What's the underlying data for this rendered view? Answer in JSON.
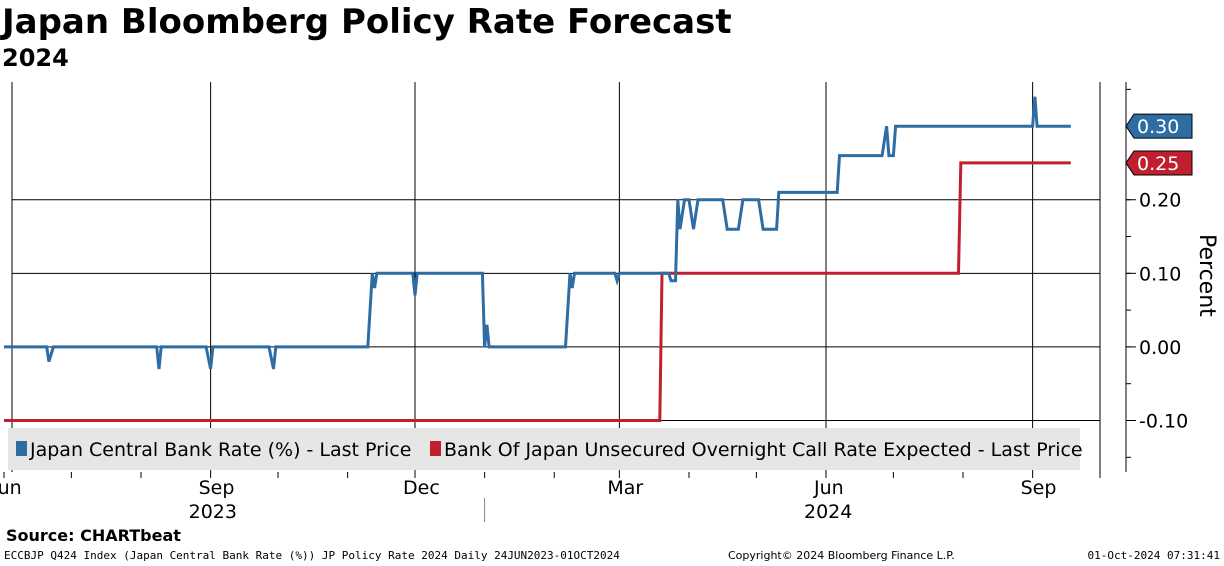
{
  "title": "Japan Bloomberg Policy Rate Forecast",
  "subtitle": "2024",
  "source": "Source: CHARTbeat",
  "footer": {
    "left": "ECCBJP Q424 Index (Japan Central Bank Rate (%)) JP Policy Rate 2024  Daily 24JUN2023-01OCT2024",
    "middle": "Copyright© 2024 Bloomberg Finance L.P.",
    "right": "01-Oct-2024 07:31:41"
  },
  "chart_data": {
    "type": "line",
    "x_range": [
      "2023-06-01",
      "2024-10-01"
    ],
    "ylabel": "Percent",
    "ylim": [
      -0.17,
      0.36
    ],
    "yticks": [
      -0.1,
      0.0,
      0.1,
      0.2
    ],
    "ytick_labels": [
      "-0.10",
      "0.00",
      "0.10",
      "0.20"
    ],
    "x_ticks": [
      {
        "date": "2023-06-01",
        "label": "Jun"
      },
      {
        "date": "2023-09-01",
        "label": "Sep"
      },
      {
        "date": "2023-12-01",
        "label": "Dec"
      },
      {
        "date": "2024-03-01",
        "label": "Mar"
      },
      {
        "date": "2024-06-01",
        "label": "Jun"
      },
      {
        "date": "2024-09-01",
        "label": "Sep"
      }
    ],
    "year_labels": [
      {
        "date": "2023-09-01",
        "label": "2023"
      },
      {
        "date": "2024-06-01",
        "label": "2024"
      }
    ],
    "year_divider": "2024-01-01",
    "grid": true,
    "legend_position": "bottom",
    "series": [
      {
        "name": "Japan Central Bank Rate (%) - Last Price",
        "color": "#2e6ca4",
        "last_value_label": "0.30",
        "points": [
          [
            "2023-06-01",
            0.0
          ],
          [
            "2023-06-20",
            0.0
          ],
          [
            "2023-06-21",
            -0.02
          ],
          [
            "2023-06-23",
            0.0
          ],
          [
            "2023-08-08",
            0.0
          ],
          [
            "2023-08-09",
            -0.03
          ],
          [
            "2023-08-10",
            0.0
          ],
          [
            "2023-08-30",
            0.0
          ],
          [
            "2023-09-01",
            -0.03
          ],
          [
            "2023-09-02",
            0.0
          ],
          [
            "2023-09-27",
            0.0
          ],
          [
            "2023-09-29",
            -0.03
          ],
          [
            "2023-09-30",
            0.0
          ],
          [
            "2023-11-10",
            0.0
          ],
          [
            "2023-11-12",
            0.1
          ],
          [
            "2023-11-13",
            0.08
          ],
          [
            "2023-11-14",
            0.1
          ],
          [
            "2023-11-30",
            0.1
          ],
          [
            "2023-12-01",
            0.07
          ],
          [
            "2023-12-02",
            0.1
          ],
          [
            "2023-12-31",
            0.1
          ],
          [
            "2024-01-01",
            0.0
          ],
          [
            "2024-01-02",
            0.03
          ],
          [
            "2024-01-03",
            0.0
          ],
          [
            "2024-02-06",
            0.0
          ],
          [
            "2024-02-08",
            0.1
          ],
          [
            "2024-02-09",
            0.08
          ],
          [
            "2024-02-10",
            0.1
          ],
          [
            "2024-02-28",
            0.1
          ],
          [
            "2024-02-29",
            0.09
          ],
          [
            "2024-03-01",
            0.1
          ],
          [
            "2024-03-23",
            0.1
          ],
          [
            "2024-03-24",
            0.09
          ],
          [
            "2024-03-26",
            0.09
          ],
          [
            "2024-03-27",
            0.2
          ],
          [
            "2024-03-28",
            0.16
          ],
          [
            "2024-03-30",
            0.2
          ],
          [
            "2024-04-01",
            0.2
          ],
          [
            "2024-04-03",
            0.16
          ],
          [
            "2024-04-05",
            0.2
          ],
          [
            "2024-04-16",
            0.2
          ],
          [
            "2024-04-18",
            0.16
          ],
          [
            "2024-04-23",
            0.16
          ],
          [
            "2024-04-25",
            0.2
          ],
          [
            "2024-05-02",
            0.2
          ],
          [
            "2024-05-04",
            0.16
          ],
          [
            "2024-05-10",
            0.16
          ],
          [
            "2024-05-11",
            0.21
          ],
          [
            "2024-06-06",
            0.21
          ],
          [
            "2024-06-07",
            0.26
          ],
          [
            "2024-06-26",
            0.26
          ],
          [
            "2024-06-28",
            0.3
          ],
          [
            "2024-06-29",
            0.26
          ],
          [
            "2024-07-01",
            0.26
          ],
          [
            "2024-07-02",
            0.3
          ],
          [
            "2024-09-01",
            0.3
          ],
          [
            "2024-09-02",
            0.34
          ],
          [
            "2024-09-03",
            0.3
          ],
          [
            "2024-09-18",
            0.3
          ]
        ]
      },
      {
        "name": "Bank Of Japan Unsecured Overnight Call Rate Expected - Last Price",
        "color": "#c0202e",
        "last_value_label": "0.25",
        "points": [
          [
            "2023-06-01",
            -0.1
          ],
          [
            "2024-03-19",
            -0.1
          ],
          [
            "2024-03-20",
            0.1
          ],
          [
            "2024-07-30",
            0.1
          ],
          [
            "2024-07-31",
            0.25
          ],
          [
            "2024-09-18",
            0.25
          ]
        ]
      }
    ]
  }
}
